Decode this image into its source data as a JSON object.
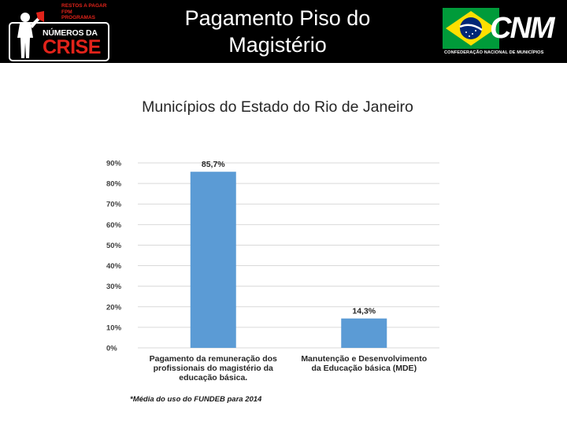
{
  "header": {
    "title": "Pagamento Piso do Magistério",
    "left_logo": {
      "lines": [
        "RESTOS A PAGAR",
        "FPM",
        "PROGRAMAS"
      ],
      "numeros": "NÚMEROS DA",
      "crise": "CRISE"
    },
    "right_logo": {
      "letters": "CNM",
      "subtitle": "CONFEDERAÇÃO NACIONAL DE MUNICÍPIOS"
    }
  },
  "chart_data": {
    "type": "bar",
    "title": "Municípios do Estado do Rio de Janeiro",
    "categories": [
      [
        "Pagamento da remuneração dos",
        "profissionais do magistério da",
        "educação básica."
      ],
      [
        "Manutenção e Desenvolvimento",
        "da Educação básica (MDE)"
      ]
    ],
    "values": [
      85.7,
      14.3
    ],
    "data_labels": [
      "85,7%",
      "14,3%"
    ],
    "y_ticks": [
      0,
      10,
      20,
      30,
      40,
      50,
      60,
      70,
      80,
      90
    ],
    "y_tick_labels": [
      "0%",
      "10%",
      "20%",
      "30%",
      "40%",
      "50%",
      "60%",
      "70%",
      "80%",
      "90%"
    ],
    "ylim": [
      0,
      90
    ],
    "grid": true,
    "bar_color": "#5b9bd5",
    "grid_color": "#d9d9d9"
  },
  "footnote": "*Média do uso do FUNDEB para 2014"
}
